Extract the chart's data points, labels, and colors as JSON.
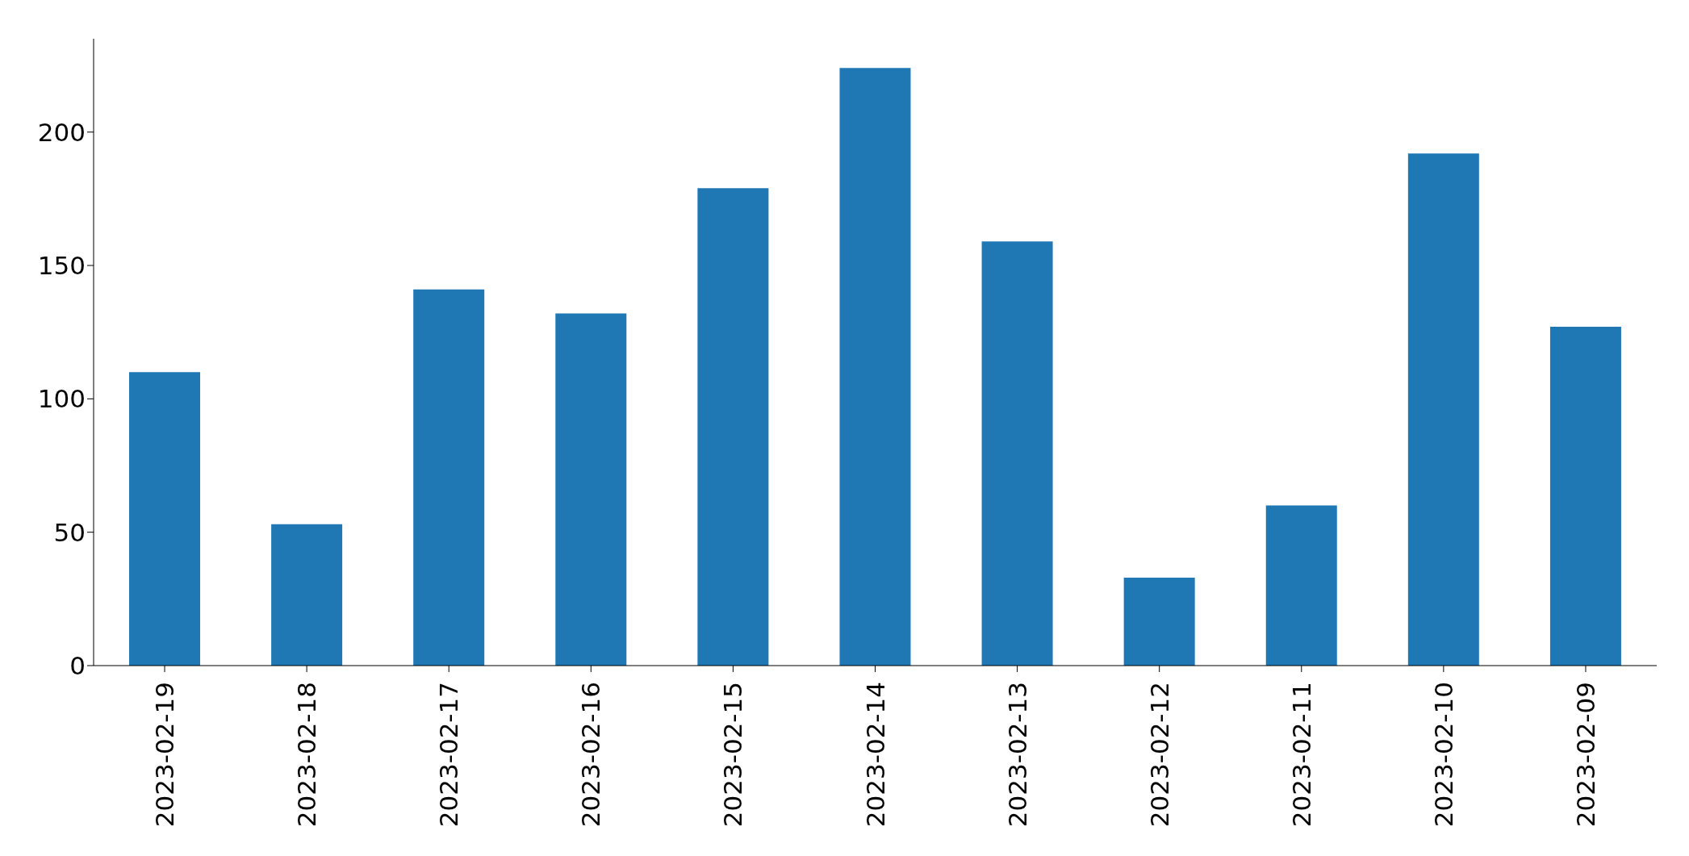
{
  "chart_data": {
    "type": "bar",
    "categories": [
      "2023-02-19",
      "2023-02-18",
      "2023-02-17",
      "2023-02-16",
      "2023-02-15",
      "2023-02-14",
      "2023-02-13",
      "2023-02-12",
      "2023-02-11",
      "2023-02-10",
      "2023-02-09"
    ],
    "values": [
      110,
      53,
      141,
      132,
      179,
      224,
      159,
      33,
      60,
      192,
      127
    ],
    "color": "#1f77b4",
    "ylim": [
      0,
      235
    ],
    "yticks": [
      0,
      50,
      100,
      150,
      200
    ],
    "grid": false
  }
}
